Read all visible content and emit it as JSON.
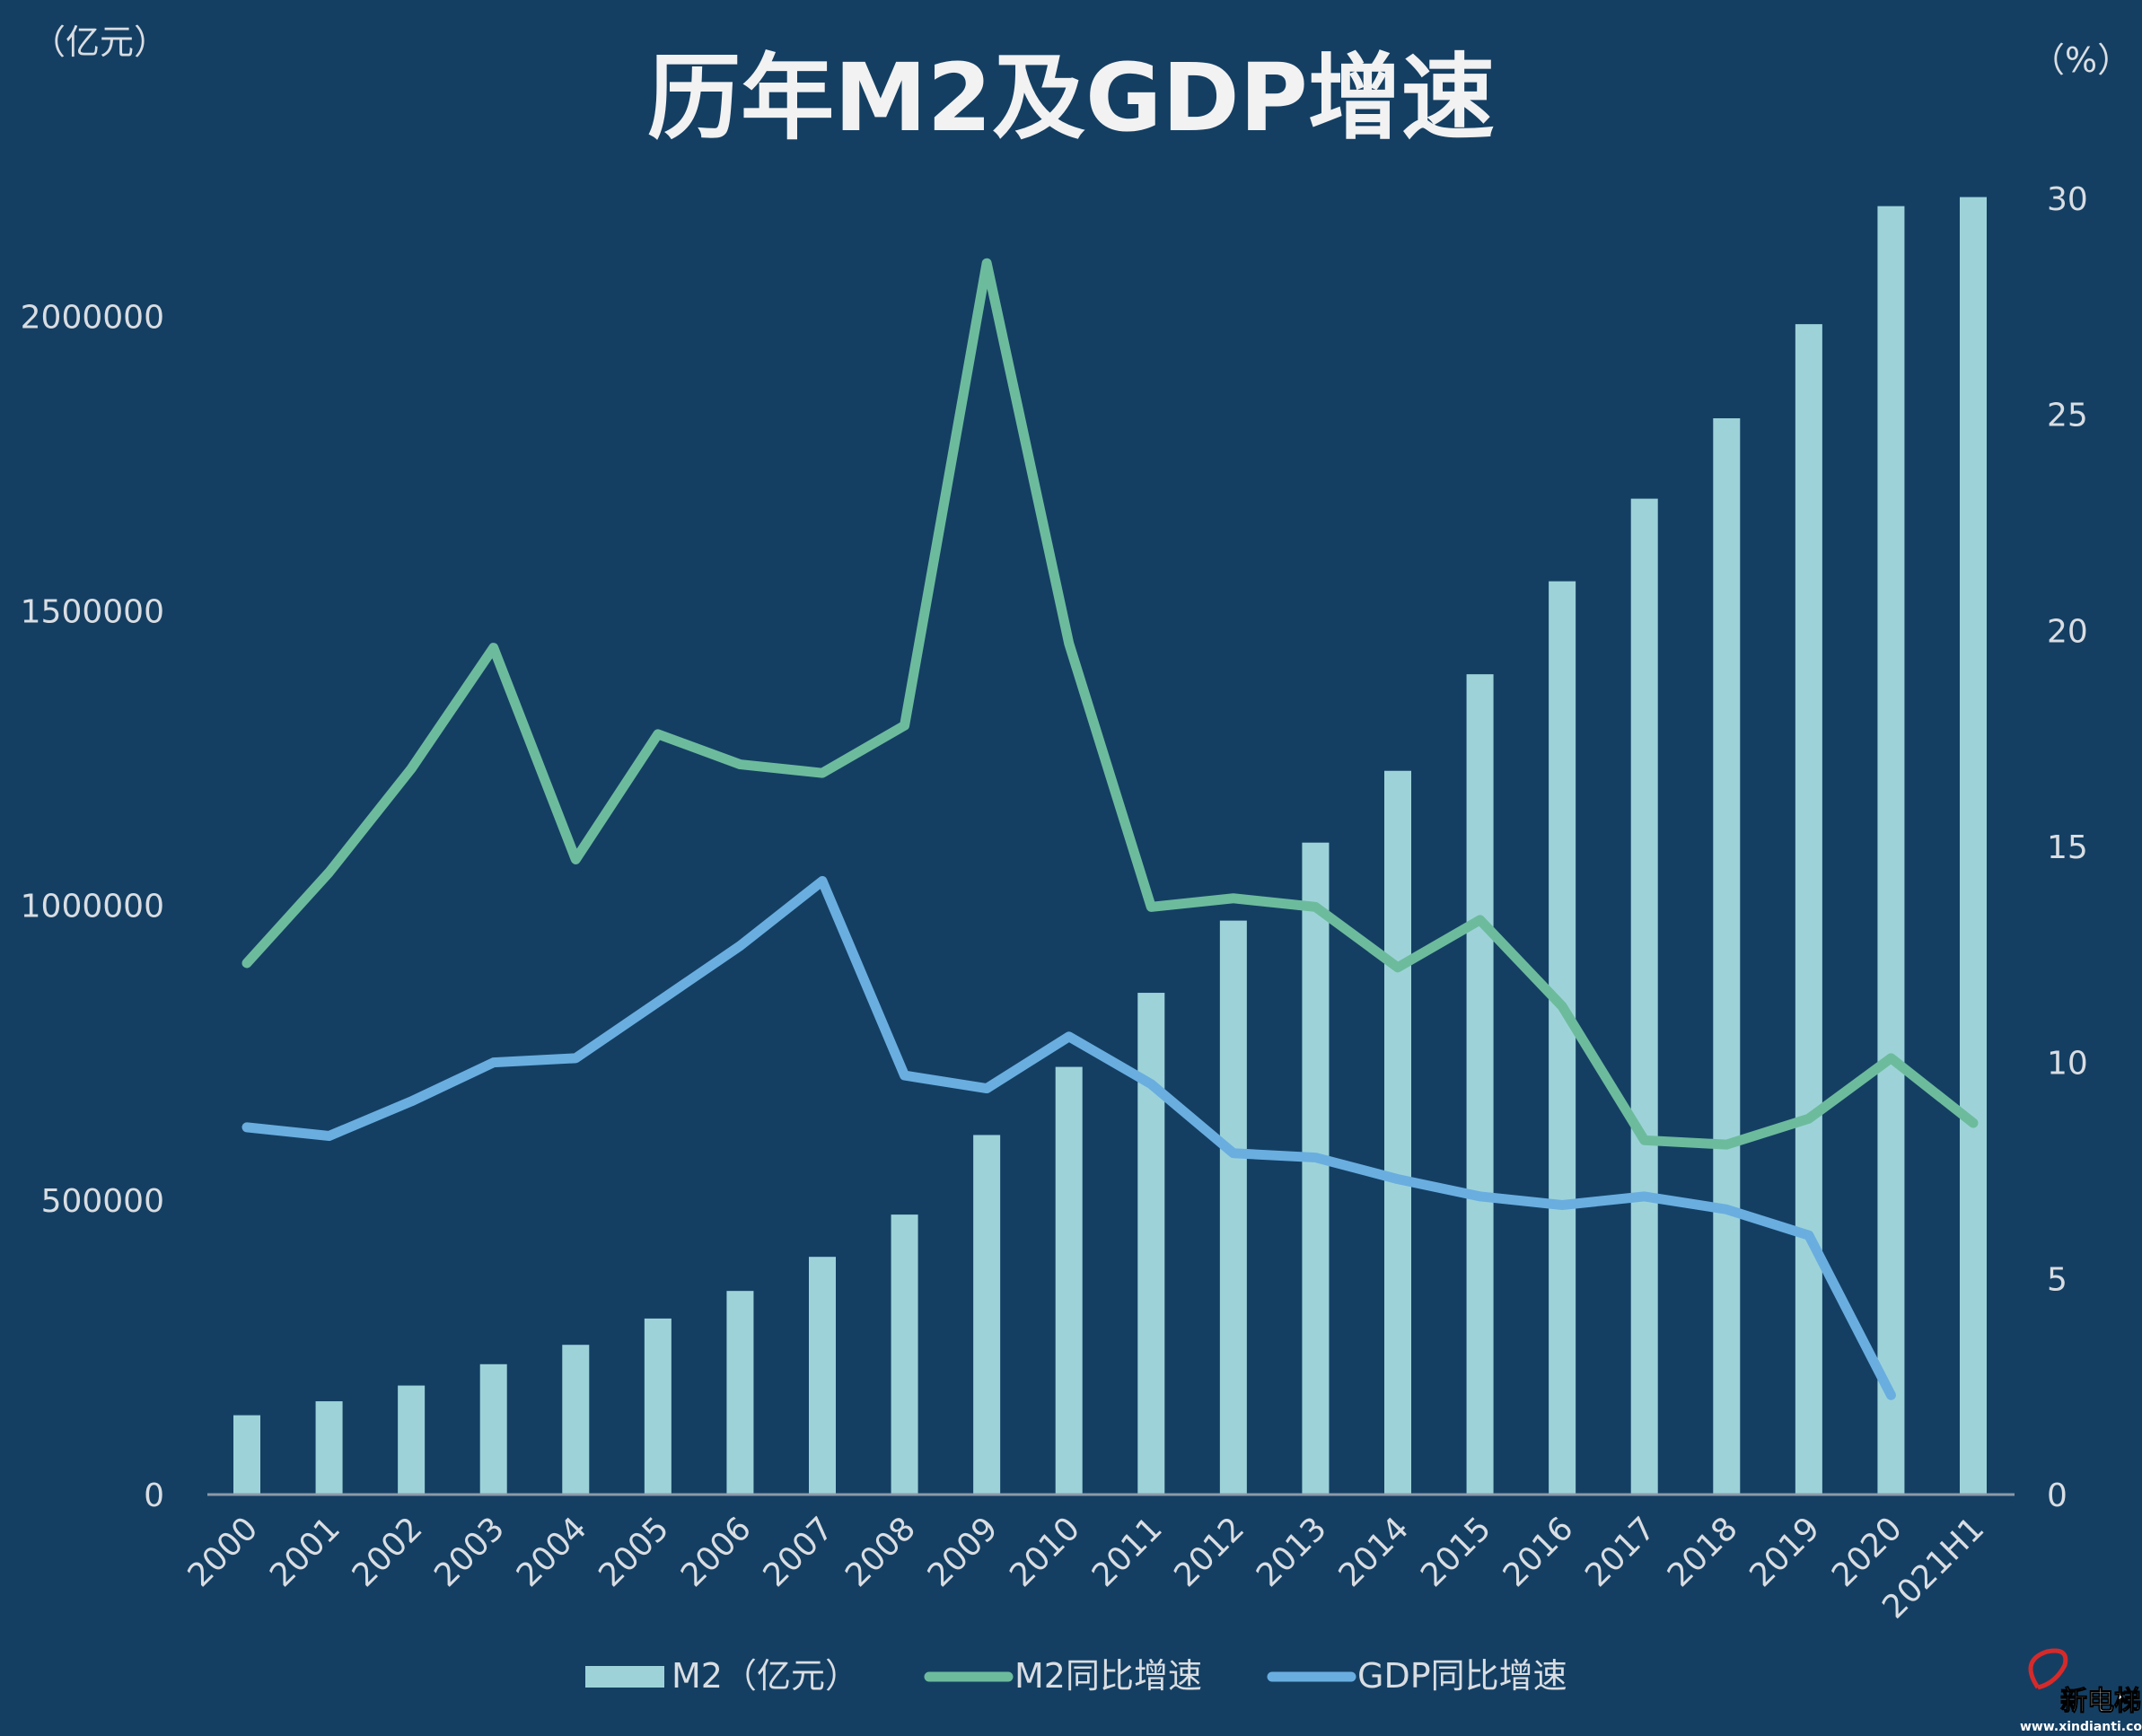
{
  "chart_data": {
    "type": "bar+line",
    "title": "历年M2及GDP增速",
    "left_unit": "（亿元）",
    "right_unit": "（%）",
    "categories": [
      "2000",
      "2001",
      "2002",
      "2003",
      "2004",
      "2005",
      "2006",
      "2007",
      "2008",
      "2009",
      "2010",
      "2011",
      "2012",
      "2013",
      "2014",
      "2015",
      "2016",
      "2017",
      "2018",
      "2019",
      "2020",
      "2021H1"
    ],
    "left_ylim": [
      0,
      2200000
    ],
    "left_ticks": [
      "0",
      "500000",
      "1000000",
      "1500000",
      "2000000"
    ],
    "right_ylim": [
      0,
      30
    ],
    "right_ticks": [
      "0",
      "5",
      "10",
      "15",
      "20",
      "25",
      "30"
    ],
    "grid": false,
    "legend_position": "bottom",
    "series": [
      {
        "name": "M2（亿元）",
        "type": "bar",
        "axis": "left",
        "color": "#9dd3d8",
        "values": [
          134610,
          158302,
          185007,
          221223,
          254107,
          298756,
          345578,
          403442,
          475167,
          610225,
          725852,
          851591,
          974149,
          1106525,
          1228375,
          1392278,
          1550067,
          1690235,
          1826744,
          1986488,
          2186796,
          2202184
        ]
      },
      {
        "name": "M2同比增速",
        "type": "line",
        "axis": "right",
        "color": "#6dbb9d",
        "values": [
          12.3,
          14.4,
          16.8,
          19.6,
          14.7,
          17.6,
          16.9,
          16.7,
          17.8,
          28.5,
          19.7,
          13.6,
          13.8,
          13.6,
          12.2,
          13.3,
          11.3,
          8.2,
          8.1,
          8.7,
          10.1,
          8.6
        ]
      },
      {
        "name": "GDP同比增速",
        "type": "line",
        "axis": "right",
        "color": "#6aaee0",
        "values": [
          8.5,
          8.3,
          9.1,
          10.0,
          10.1,
          11.4,
          12.7,
          14.2,
          9.7,
          9.4,
          10.6,
          9.5,
          7.9,
          7.8,
          7.3,
          6.9,
          6.7,
          6.9,
          6.6,
          6.0,
          2.3,
          null
        ]
      }
    ]
  },
  "watermark": {
    "text": "新电梯",
    "url": "www.xindianti.com"
  }
}
